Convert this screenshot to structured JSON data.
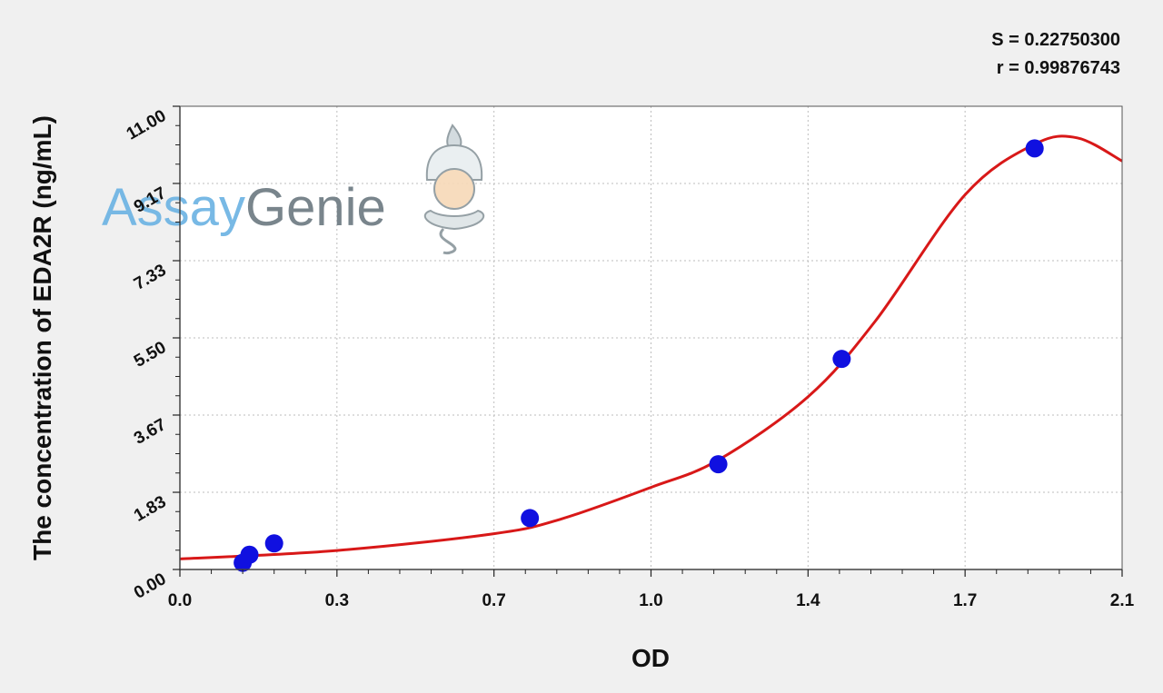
{
  "chart_data": {
    "type": "scatter",
    "xlabel": "OD",
    "ylabel": "The concentration of EDA2R (ng/mL)",
    "x_ticks": [
      "0.0",
      "0.3",
      "0.7",
      "1.0",
      "1.4",
      "1.7",
      "2.1"
    ],
    "x_tick_values": [
      0,
      0.35,
      0.7,
      1.05,
      1.4,
      1.75,
      2.1
    ],
    "y_ticks": [
      "0.00",
      "1.83",
      "3.67",
      "5.50",
      "7.33",
      "9.17",
      "11.00"
    ],
    "y_tick_values": [
      0,
      1.833,
      3.667,
      5.5,
      7.333,
      9.167,
      11
    ],
    "xlim": [
      0,
      2.1
    ],
    "ylim": [
      0,
      11
    ],
    "grid": true,
    "annotations": {
      "s_value": "S = 0.22750300",
      "r_value": "r = 0.99876743"
    },
    "series": [
      {
        "type": "scatter",
        "color": "#1010e0",
        "x": [
          0.14,
          0.155,
          0.21,
          0.78,
          1.2,
          1.475,
          1.905
        ],
        "y": [
          0.16,
          0.35,
          0.62,
          1.22,
          2.5,
          5.0,
          10.0
        ]
      },
      {
        "type": "line",
        "color": "#d81818",
        "x": [
          0,
          0.35,
          0.7,
          0.85,
          1.05,
          1.2,
          1.4,
          1.55,
          1.75,
          1.905,
          2.0,
          2.1
        ],
        "y": [
          0.25,
          0.45,
          0.85,
          1.2,
          1.95,
          2.6,
          4.1,
          5.9,
          8.9,
          10.1,
          10.25,
          9.7
        ]
      }
    ]
  },
  "watermark": {
    "assay": "Assay",
    "genie": "Genie",
    "assay_color": "#6ab2e3",
    "genie_color": "#6b7880"
  }
}
